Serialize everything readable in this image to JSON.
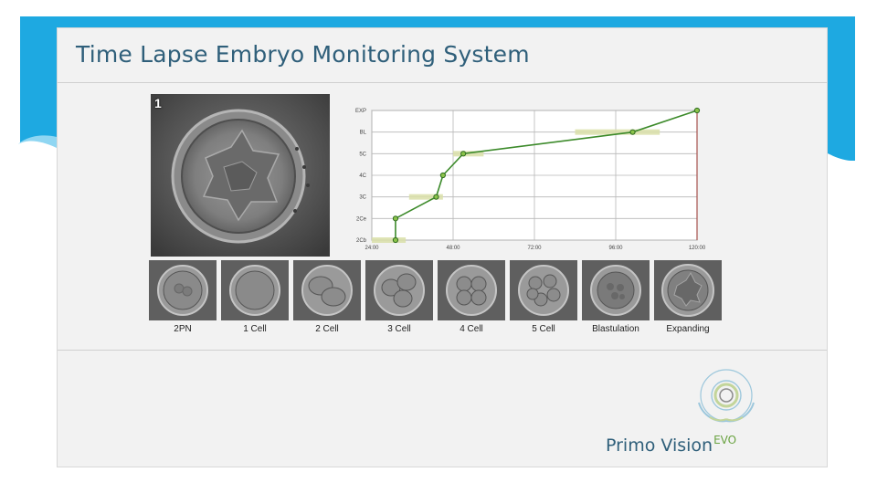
{
  "slide": {
    "title": "Time Lapse Embryo Monitoring System",
    "main_photo_number": "1",
    "brand_name": "Primo Vision",
    "brand_suffix": "EVO"
  },
  "colors": {
    "accent_cyan": "#1ea9e1",
    "title_blue": "#2f5f7a",
    "line_green": "#3c8a2a",
    "range_band": "#d9dfa8",
    "end_marker": "#a6524e"
  },
  "stages": [
    {
      "label": "2PN"
    },
    {
      "label": "1 Cell"
    },
    {
      "label": "2 Cell"
    },
    {
      "label": "3 Cell"
    },
    {
      "label": "4 Cell"
    },
    {
      "label": "5 Cell"
    },
    {
      "label": "Blastulation"
    },
    {
      "label": "Expanding"
    }
  ],
  "chart_data": {
    "type": "line",
    "x_ticks": [
      "24:00",
      "48:00",
      "72:00",
      "96:00",
      "120:00"
    ],
    "x_tick_values": [
      24,
      48,
      72,
      96,
      120
    ],
    "xlim": [
      24,
      120
    ],
    "y_categories": [
      "2Cb",
      "2Ce",
      "3C",
      "4C",
      "5C",
      "BL",
      "EXP"
    ],
    "series": [
      {
        "points": [
          {
            "x": 31,
            "y": "2Cb"
          },
          {
            "x": 31,
            "y": "2Ce"
          },
          {
            "x": 43,
            "y": "3C"
          },
          {
            "x": 45,
            "y": "4C"
          },
          {
            "x": 51,
            "y": "5C"
          },
          {
            "x": 101,
            "y": "BL"
          },
          {
            "x": 120,
            "y": "EXP"
          }
        ]
      }
    ],
    "ranges": [
      {
        "y": "2Cb",
        "x_start": 24,
        "x_end": 34
      },
      {
        "y": "3C",
        "x_start": 35,
        "x_end": 45
      },
      {
        "y": "5C",
        "x_start": 48,
        "x_end": 57
      },
      {
        "y": "BL",
        "x_start": 84,
        "x_end": 109
      }
    ],
    "marker_line_x": 120,
    "grid": true
  }
}
